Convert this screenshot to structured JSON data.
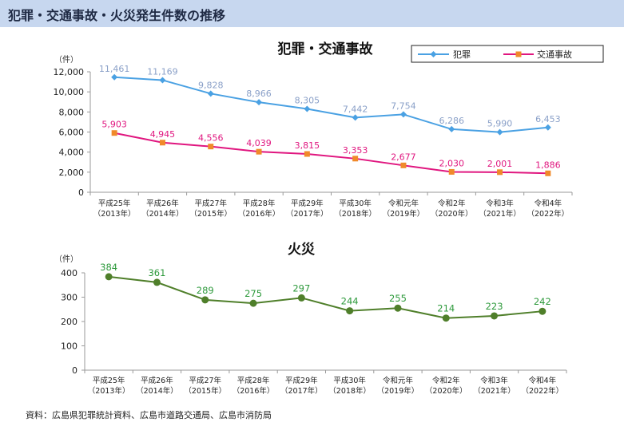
{
  "page_title": "犯罪・交通事故・火災発生件数の推移",
  "source_note": "資料：広島県犯罪統計資料、広島市道路交通局、広島市消防局",
  "colors": {
    "title_bg": "#c7d7ef",
    "crime": "#4aa1e3",
    "crime_label": "#8aa0c8",
    "traffic": "#e0167f",
    "traffic_marker": "#f08a2a",
    "traffic_label": "#e0167f",
    "fire": "#4f7f2a",
    "fire_label": "#2e9a3c"
  },
  "chart_data": [
    {
      "type": "line",
      "title": "犯罪・交通事故",
      "unit_label": "（件）",
      "categories": [
        [
          "平成25年",
          "（2013年）"
        ],
        [
          "平成26年",
          "（2014年）"
        ],
        [
          "平成27年",
          "（2015年）"
        ],
        [
          "平成28年",
          "（2016年）"
        ],
        [
          "平成29年",
          "（2017年）"
        ],
        [
          "平成30年",
          "（2018年）"
        ],
        [
          "令和元年",
          "（2019年）"
        ],
        [
          "令和2年",
          "（2020年）"
        ],
        [
          "令和3年",
          "（2021年）"
        ],
        [
          "令和4年",
          "（2022年）"
        ]
      ],
      "series": [
        {
          "name": "犯罪",
          "values": [
            11461,
            11169,
            9828,
            8966,
            8305,
            7442,
            7754,
            6286,
            5990,
            6453
          ],
          "labels": [
            "11,461",
            "11,169",
            "9,828",
            "8,966",
            "8,305",
            "7,442",
            "7,754",
            "6,286",
            "5,990",
            "6,453"
          ]
        },
        {
          "name": "交通事故",
          "values": [
            5903,
            4945,
            4556,
            4039,
            3815,
            3353,
            2677,
            2030,
            2001,
            1886
          ],
          "labels": [
            "5,903",
            "4,945",
            "4,556",
            "4,039",
            "3,815",
            "3,353",
            "2,677",
            "2,030",
            "2,001",
            "1,886"
          ]
        }
      ],
      "ylim": [
        0,
        12000
      ],
      "yticks": [
        "0",
        "2,000",
        "4,000",
        "6,000",
        "8,000",
        "10,000",
        "12,000"
      ],
      "grid": false,
      "legend": "top-right"
    },
    {
      "type": "line",
      "title": "火災",
      "unit_label": "（件）",
      "categories": [
        [
          "平成25年",
          "（2013年）"
        ],
        [
          "平成26年",
          "（2014年）"
        ],
        [
          "平成27年",
          "（2015年）"
        ],
        [
          "平成28年",
          "（2016年）"
        ],
        [
          "平成29年",
          "（2017年）"
        ],
        [
          "平成30年",
          "（2018年）"
        ],
        [
          "令和元年",
          "（2019年）"
        ],
        [
          "令和2年",
          "（2020年）"
        ],
        [
          "令和3年",
          "（2021年）"
        ],
        [
          "令和4年",
          "（2022年）"
        ]
      ],
      "series": [
        {
          "values": [
            384,
            361,
            289,
            275,
            297,
            244,
            255,
            214,
            223,
            242
          ],
          "labels": [
            "384",
            "361",
            "289",
            "275",
            "297",
            "244",
            "255",
            "214",
            "223",
            "242"
          ]
        }
      ],
      "ylim": [
        0,
        400
      ],
      "yticks": [
        "0",
        "100",
        "200",
        "300",
        "400"
      ],
      "grid": false,
      "legend": "none"
    }
  ]
}
